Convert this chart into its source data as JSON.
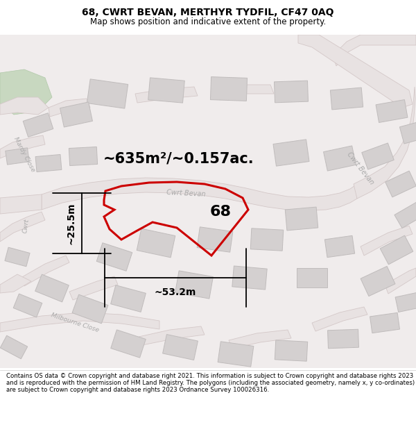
{
  "title_line1": "68, CWRT BEVAN, MERTHYR TYDFIL, CF47 0AQ",
  "title_line2": "Map shows position and indicative extent of the property.",
  "area_text": "~635m²/~0.157ac.",
  "label_68": "68",
  "dim_width": "~53.2m",
  "dim_height": "~25.5m",
  "street_cwrt_bevan_center": "Cwrt Bevan",
  "street_cwrt_bevan_right": "Cwrt Bevan",
  "street_cwrt_left": "Cwrt",
  "street_mardy": "Mardy Close",
  "street_milbourne": "Milbourne Close",
  "footer_text": "Contains OS data © Crown copyright and database right 2021. This information is subject to Crown copyright and database rights 2023 and is reproduced with the permission of HM Land Registry. The polygons (including the associated geometry, namely x, y co-ordinates) are subject to Crown copyright and database rights 2023 Ordnance Survey 100026316.",
  "bg_color": "#f0ecec",
  "road_fill": "#e8e2e2",
  "road_edge": "#d4c8c8",
  "building_fill": "#d4d0d0",
  "building_edge": "#c0bcbc",
  "highlight_color": "#cc0000",
  "green_fill": "#c8d8c0",
  "green_edge": "#b0c8a8",
  "street_color": "#aaaaaa",
  "dim_color": "#000000",
  "title_fontsize": 10,
  "subtitle_fontsize": 8.5,
  "area_fontsize": 15,
  "label_fontsize": 16,
  "dim_fontsize": 10,
  "street_fontsize": 7,
  "footer_fontsize": 6.2
}
